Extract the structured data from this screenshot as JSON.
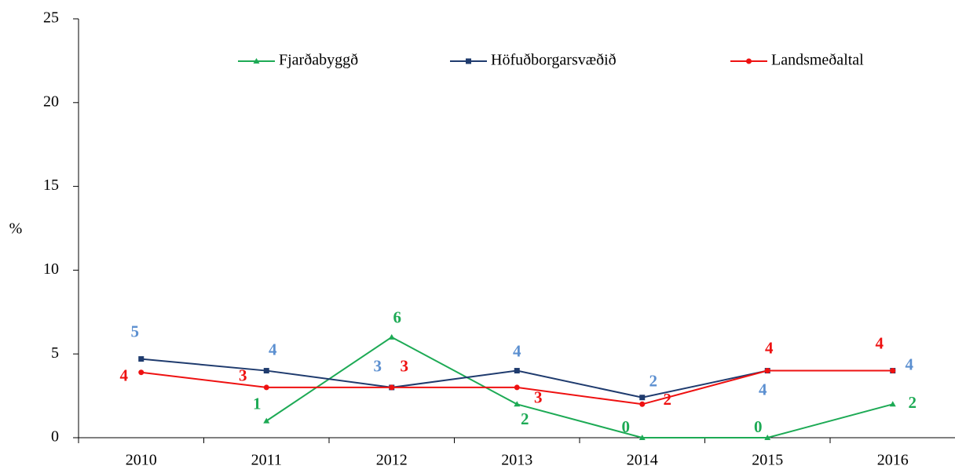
{
  "chart_data": {
    "type": "line",
    "y_label": "%",
    "categories": [
      "2010",
      "2011",
      "2012",
      "2013",
      "2014",
      "2015",
      "2016"
    ],
    "ylim": [
      0,
      25
    ],
    "yticks": [
      0,
      5,
      10,
      15,
      20,
      25
    ],
    "legend": "top",
    "series": [
      {
        "name": "Fjarðabyggð",
        "color": "#1daa55",
        "label_color": "#1daa55",
        "marker": "triangle",
        "values": [
          null,
          1,
          6,
          2,
          0,
          0,
          2
        ]
      },
      {
        "name": "Höfuðborgarsvæðið",
        "color": "#1f3b6e",
        "label_color": "#5b8fd0",
        "marker": "square",
        "values": [
          4.7,
          4.0,
          3.0,
          4.0,
          2.4,
          4.0,
          4.0
        ],
        "value_labels": [
          "5",
          "4",
          "3",
          "4",
          "2",
          "4",
          "4"
        ]
      },
      {
        "name": "Landsmeðaltal",
        "color": "#ee1111",
        "label_color": "#ee1111",
        "marker": "circle",
        "values": [
          3.9,
          3.0,
          3.0,
          3.0,
          2.0,
          4.0,
          4.0
        ],
        "value_labels": [
          "4",
          "3",
          "3",
          "3",
          "2",
          "4",
          "4"
        ]
      }
    ]
  }
}
